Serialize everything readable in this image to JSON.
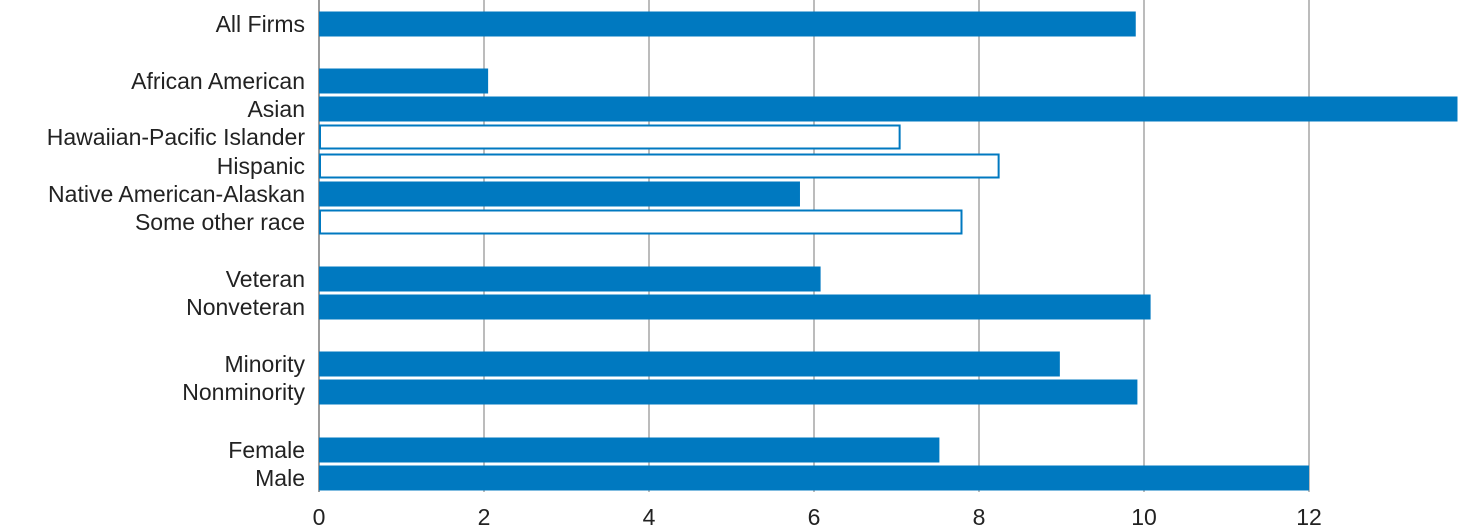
{
  "chart_data": {
    "type": "bar",
    "orientation": "horizontal",
    "categories": [
      "All Firms",
      "African American",
      "Asian",
      "Hawaiian-Pacific Islander",
      "Hispanic",
      "Native American-Alaskan",
      "Some other race",
      "Veteran",
      "Nonveteran",
      "Minority",
      "Nonminority",
      "Female",
      "Male"
    ],
    "values": [
      9.9,
      2.05,
      13.8,
      7.05,
      8.25,
      5.83,
      7.8,
      6.08,
      10.08,
      8.98,
      9.92,
      7.52,
      12.0
    ],
    "outlined": [
      false,
      false,
      false,
      true,
      true,
      false,
      true,
      false,
      false,
      false,
      false,
      false,
      false
    ],
    "groups": [
      [
        0
      ],
      [
        1,
        2,
        3,
        4,
        5,
        6
      ],
      [
        7,
        8
      ],
      [
        9,
        10
      ],
      [
        11,
        12
      ]
    ],
    "xlim": [
      0,
      13.8
    ],
    "xticks": [
      0,
      2,
      4,
      6,
      8,
      10,
      12
    ],
    "grid": true,
    "title": "",
    "xlabel": "",
    "ylabel": "",
    "bar_color": "#0079c0",
    "grid_color": "#7a7a7a",
    "background": "#ffffff"
  }
}
